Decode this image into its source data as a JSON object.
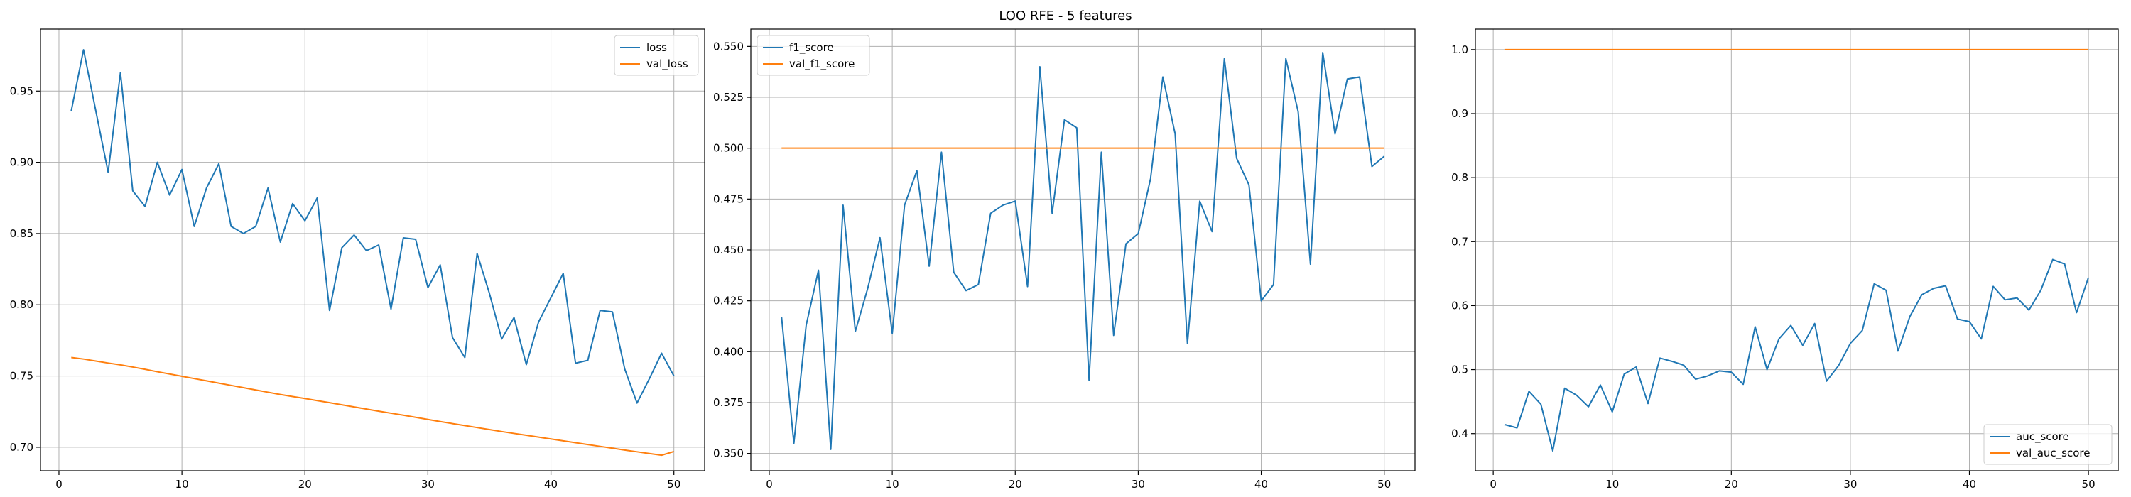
{
  "figure": {
    "title": "LOO RFE - 5 features"
  },
  "colors": {
    "series1": "#1f77b4",
    "series2": "#ff7f0e"
  },
  "chart_data": [
    {
      "type": "line",
      "title": "",
      "xlabel": "",
      "ylabel": "",
      "xlim": [
        -1.5,
        52.5
      ],
      "ylim": [
        0.6835,
        0.9935
      ],
      "xticks": [
        0,
        10,
        20,
        30,
        40,
        50
      ],
      "yticks": [
        0.7,
        0.75,
        0.8,
        0.85,
        0.9,
        0.95
      ],
      "tick_labels": [
        "0.70",
        "0.75",
        "0.80",
        "0.85",
        "0.90",
        "0.95"
      ],
      "grid": true,
      "legend_position": "upper right",
      "x": [
        1,
        2,
        3,
        4,
        5,
        6,
        7,
        8,
        9,
        10,
        11,
        12,
        13,
        14,
        15,
        16,
        17,
        18,
        19,
        20,
        21,
        22,
        23,
        24,
        25,
        26,
        27,
        28,
        29,
        30,
        31,
        32,
        33,
        34,
        35,
        36,
        37,
        38,
        39,
        40,
        41,
        42,
        43,
        44,
        45,
        46,
        47,
        48,
        49,
        50
      ],
      "series": [
        {
          "name": "loss",
          "color": "#1f77b4",
          "values": [
            0.936,
            0.979,
            0.936,
            0.893,
            0.963,
            0.88,
            0.869,
            0.9,
            0.877,
            0.895,
            0.855,
            0.882,
            0.899,
            0.855,
            0.85,
            0.855,
            0.882,
            0.844,
            0.871,
            0.859,
            0.875,
            0.796,
            0.84,
            0.849,
            0.838,
            0.842,
            0.797,
            0.847,
            0.846,
            0.812,
            0.828,
            0.777,
            0.763,
            0.836,
            0.808,
            0.776,
            0.791,
            0.758,
            0.788,
            0.805,
            0.822,
            0.759,
            0.761,
            0.796,
            0.795,
            0.755,
            0.731,
            0.748,
            0.766,
            0.75
          ]
        },
        {
          "name": "val_loss",
          "color": "#ff7f0e",
          "values": [
            0.763,
            0.7619,
            0.7605,
            0.7591,
            0.7578,
            0.7563,
            0.7547,
            0.753,
            0.7514,
            0.7498,
            0.7482,
            0.7466,
            0.745,
            0.7434,
            0.7418,
            0.7402,
            0.7386,
            0.737,
            0.7356,
            0.7342,
            0.7327,
            0.7313,
            0.7298,
            0.7283,
            0.7268,
            0.7253,
            0.7239,
            0.7225,
            0.721,
            0.7195,
            0.718,
            0.7166,
            0.7152,
            0.7138,
            0.7124,
            0.711,
            0.7097,
            0.7084,
            0.7071,
            0.7058,
            0.7045,
            0.7032,
            0.7019,
            0.7006,
            0.6993,
            0.698,
            0.6968,
            0.6956,
            0.6944,
            0.697
          ]
        }
      ]
    },
    {
      "type": "line",
      "title": "",
      "xlabel": "",
      "ylabel": "",
      "xlim": [
        -1.5,
        52.5
      ],
      "ylim": [
        0.3415,
        0.5585
      ],
      "xticks": [
        0,
        10,
        20,
        30,
        40,
        50
      ],
      "yticks": [
        0.35,
        0.375,
        0.4,
        0.425,
        0.45,
        0.475,
        0.5,
        0.525,
        0.55
      ],
      "tick_labels": [
        "0.350",
        "0.375",
        "0.400",
        "0.425",
        "0.450",
        "0.475",
        "0.500",
        "0.525",
        "0.550"
      ],
      "grid": true,
      "legend_position": "upper left",
      "x": [
        1,
        2,
        3,
        4,
        5,
        6,
        7,
        8,
        9,
        10,
        11,
        12,
        13,
        14,
        15,
        16,
        17,
        18,
        19,
        20,
        21,
        22,
        23,
        24,
        25,
        26,
        27,
        28,
        29,
        30,
        31,
        32,
        33,
        34,
        35,
        36,
        37,
        38,
        39,
        40,
        41,
        42,
        43,
        44,
        45,
        46,
        47,
        48,
        49,
        50
      ],
      "series": [
        {
          "name": "f1_score",
          "color": "#1f77b4",
          "values": [
            0.417,
            0.355,
            0.413,
            0.44,
            0.352,
            0.472,
            0.41,
            0.431,
            0.456,
            0.409,
            0.472,
            0.489,
            0.442,
            0.498,
            0.439,
            0.43,
            0.433,
            0.468,
            0.472,
            0.474,
            0.432,
            0.54,
            0.468,
            0.514,
            0.51,
            0.386,
            0.498,
            0.408,
            0.453,
            0.458,
            0.485,
            0.535,
            0.507,
            0.404,
            0.474,
            0.459,
            0.544,
            0.495,
            0.482,
            0.425,
            0.433,
            0.544,
            0.518,
            0.443,
            0.547,
            0.507,
            0.534,
            0.535,
            0.491,
            0.496
          ]
        },
        {
          "name": "val_f1_score",
          "color": "#ff7f0e",
          "values": [
            0.5,
            0.5,
            0.5,
            0.5,
            0.5,
            0.5,
            0.5,
            0.5,
            0.5,
            0.5,
            0.5,
            0.5,
            0.5,
            0.5,
            0.5,
            0.5,
            0.5,
            0.5,
            0.5,
            0.5,
            0.5,
            0.5,
            0.5,
            0.5,
            0.5,
            0.5,
            0.5,
            0.5,
            0.5,
            0.5,
            0.5,
            0.5,
            0.5,
            0.5,
            0.5,
            0.5,
            0.5,
            0.5,
            0.5,
            0.5,
            0.5,
            0.5,
            0.5,
            0.5,
            0.5,
            0.5,
            0.5,
            0.5,
            0.5,
            0.5
          ]
        }
      ]
    },
    {
      "type": "line",
      "title": "",
      "xlabel": "",
      "ylabel": "",
      "xlim": [
        -1.5,
        52.5
      ],
      "ylim": [
        0.342,
        1.032
      ],
      "xticks": [
        0,
        10,
        20,
        30,
        40,
        50
      ],
      "yticks": [
        0.4,
        0.5,
        0.6,
        0.7,
        0.8,
        0.9,
        1.0
      ],
      "tick_labels": [
        "0.4",
        "0.5",
        "0.6",
        "0.7",
        "0.8",
        "0.9",
        "1.0"
      ],
      "grid": true,
      "legend_position": "lower right",
      "x": [
        1,
        2,
        3,
        4,
        5,
        6,
        7,
        8,
        9,
        10,
        11,
        12,
        13,
        14,
        15,
        16,
        17,
        18,
        19,
        20,
        21,
        22,
        23,
        24,
        25,
        26,
        27,
        28,
        29,
        30,
        31,
        32,
        33,
        34,
        35,
        36,
        37,
        38,
        39,
        40,
        41,
        42,
        43,
        44,
        45,
        46,
        47,
        48,
        49,
        50
      ],
      "series": [
        {
          "name": "auc_score",
          "color": "#1f77b4",
          "values": [
            0.414,
            0.409,
            0.466,
            0.446,
            0.373,
            0.471,
            0.46,
            0.442,
            0.476,
            0.434,
            0.493,
            0.504,
            0.447,
            0.518,
            0.513,
            0.507,
            0.485,
            0.49,
            0.498,
            0.496,
            0.477,
            0.567,
            0.5,
            0.548,
            0.569,
            0.538,
            0.572,
            0.482,
            0.506,
            0.541,
            0.561,
            0.634,
            0.624,
            0.529,
            0.583,
            0.617,
            0.627,
            0.631,
            0.579,
            0.575,
            0.548,
            0.63,
            0.609,
            0.612,
            0.593,
            0.624,
            0.672,
            0.665,
            0.589,
            0.644
          ]
        },
        {
          "name": "val_auc_score",
          "color": "#ff7f0e",
          "values": [
            1.0,
            1.0,
            1.0,
            1.0,
            1.0,
            1.0,
            1.0,
            1.0,
            1.0,
            1.0,
            1.0,
            1.0,
            1.0,
            1.0,
            1.0,
            1.0,
            1.0,
            1.0,
            1.0,
            1.0,
            1.0,
            1.0,
            1.0,
            1.0,
            1.0,
            1.0,
            1.0,
            1.0,
            1.0,
            1.0,
            1.0,
            1.0,
            1.0,
            1.0,
            1.0,
            1.0,
            1.0,
            1.0,
            1.0,
            1.0,
            1.0,
            1.0,
            1.0,
            1.0,
            1.0,
            1.0,
            1.0,
            1.0,
            1.0,
            1.0
          ]
        }
      ]
    }
  ]
}
